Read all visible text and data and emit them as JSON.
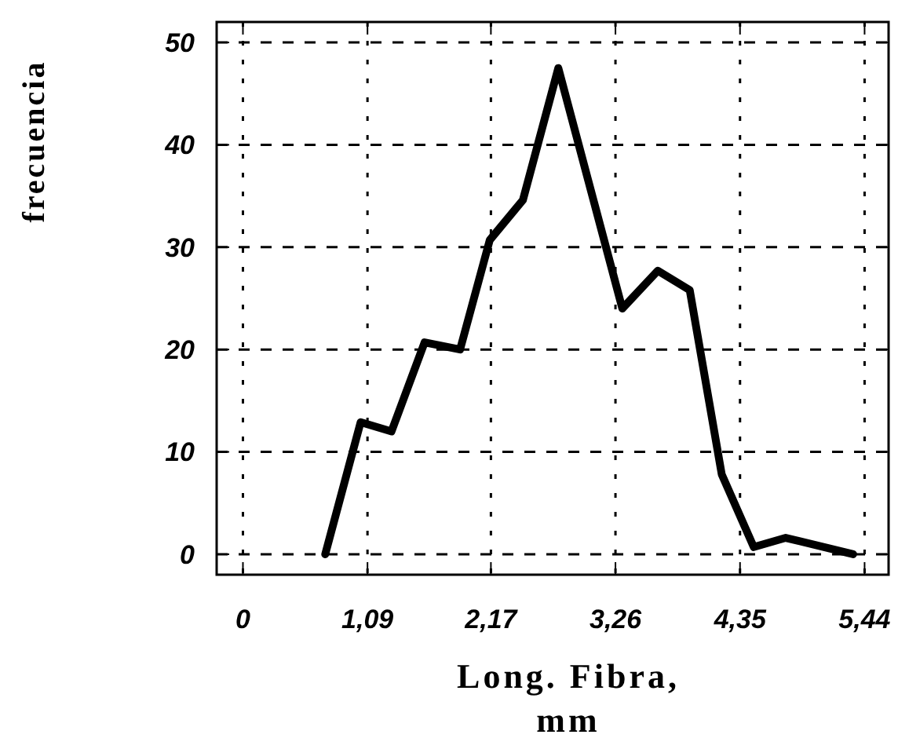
{
  "chart_data": {
    "type": "line",
    "xlabel": "Long. Fibra, mm",
    "ylabel": "frecuencia",
    "x": [
      0.72,
      1.03,
      1.3,
      1.59,
      1.9,
      2.16,
      2.45,
      2.76,
      3.32,
      3.63,
      3.91,
      4.19,
      4.47,
      4.75,
      5.34
    ],
    "series": [
      {
        "color": "#000000",
        "values": [
          0,
          12.9,
          12,
          20.7,
          20,
          30.7,
          34.6,
          47.5,
          24,
          27.7,
          25.8,
          7.8,
          0.7,
          1.6,
          0
        ]
      }
    ],
    "xlim": [
      -0.23,
      5.65
    ],
    "ylim": [
      -2,
      52
    ],
    "xticks": [
      0,
      {
        "value": 1.09,
        "label": "1,09"
      },
      {
        "value": 2.17,
        "label": "2,17"
      },
      {
        "value": 3.26,
        "label": "3,26"
      },
      {
        "value": 4.35,
        "label": "4,35"
      },
      {
        "value": 5.44,
        "label": "5,44"
      }
    ],
    "yticks": [
      0,
      10,
      20,
      30,
      40,
      50
    ],
    "grid": true,
    "marker": "none",
    "line_style": "solid"
  }
}
